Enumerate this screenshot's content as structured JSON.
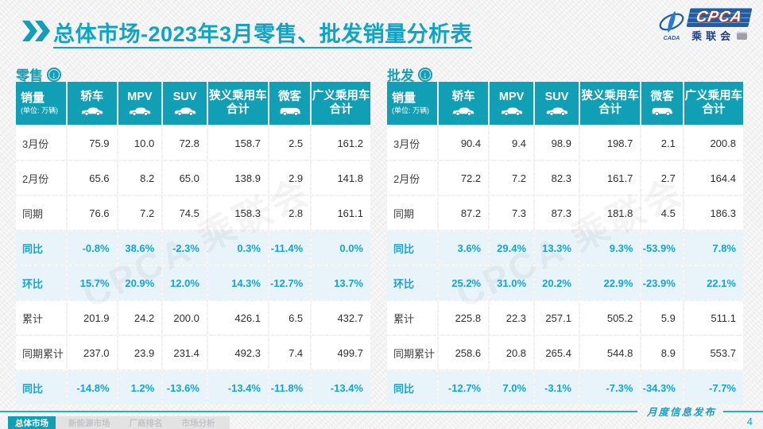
{
  "page": {
    "title": "总体市场-2023年3月零售、批发销量分析表",
    "page_number": "4",
    "footer_note": "月度信息发布",
    "footer_tabs": [
      {
        "label": "总体市场",
        "active": true
      },
      {
        "label": "新能源市场",
        "active": false
      },
      {
        "label": "厂商排名",
        "active": false
      },
      {
        "label": "市场分析",
        "active": false
      }
    ]
  },
  "logo": {
    "acronym": "CPCA",
    "chinese": "乘联会",
    "emblem_text": "CADA"
  },
  "watermark": "CPCA 乘联会",
  "colors": {
    "teal": "#119fb6",
    "title_teal": "#0fa4c4",
    "ratio_text": "#17a3d2",
    "ratio_row_bg": "#e8f4fa",
    "logo_blue": "#1c5fa8"
  },
  "tables": [
    {
      "section_title": "零售",
      "header": {
        "label": "销量",
        "unit": "(单位: 万辆)",
        "columns": [
          {
            "label": "轿车",
            "icon": "car"
          },
          {
            "label": "MPV",
            "icon": "car"
          },
          {
            "label": "SUV",
            "icon": "car"
          },
          {
            "label": "狭义乘用车",
            "label2": "合计",
            "icon": null
          },
          {
            "label": "微客",
            "icon": "van"
          },
          {
            "label": "广义乘用车",
            "label2": "合计",
            "icon": null
          }
        ]
      },
      "rows": [
        {
          "label": "3月份",
          "type": "normal",
          "values": [
            "75.9",
            "10.0",
            "72.8",
            "158.7",
            "2.5",
            "161.2"
          ]
        },
        {
          "label": "2月份",
          "type": "normal",
          "values": [
            "65.6",
            "8.2",
            "65.0",
            "138.9",
            "2.9",
            "141.8"
          ]
        },
        {
          "label": "同期",
          "type": "normal",
          "values": [
            "76.6",
            "7.2",
            "74.5",
            "158.3",
            "2.8",
            "161.1"
          ]
        },
        {
          "label": "同比",
          "type": "ratio",
          "values": [
            "-0.8%",
            "38.6%",
            "-2.3%",
            "0.3%",
            "-11.4%",
            "0.0%"
          ]
        },
        {
          "label": "环比",
          "type": "ratio",
          "values": [
            "15.7%",
            "20.9%",
            "12.0%",
            "14.3%",
            "-12.7%",
            "13.7%"
          ]
        },
        {
          "label": "累计",
          "type": "normal",
          "values": [
            "201.9",
            "24.2",
            "200.0",
            "426.1",
            "6.5",
            "432.7"
          ]
        },
        {
          "label": "同期累计",
          "type": "normal",
          "values": [
            "237.0",
            "23.9",
            "231.4",
            "492.3",
            "7.4",
            "499.7"
          ]
        },
        {
          "label": "同比",
          "type": "ratio",
          "values": [
            "-14.8%",
            "1.2%",
            "-13.6%",
            "-13.4%",
            "-11.8%",
            "-13.4%"
          ]
        }
      ]
    },
    {
      "section_title": "批发",
      "header": {
        "label": "销量",
        "unit": "(单位: 万辆)",
        "columns": [
          {
            "label": "轿车",
            "icon": "car"
          },
          {
            "label": "MPV",
            "icon": "car"
          },
          {
            "label": "SUV",
            "icon": "car"
          },
          {
            "label": "狭义乘用车",
            "label2": "合计",
            "icon": null
          },
          {
            "label": "微客",
            "icon": "van"
          },
          {
            "label": "广义乘用车",
            "label2": "合计",
            "icon": null
          }
        ]
      },
      "rows": [
        {
          "label": "3月份",
          "type": "normal",
          "values": [
            "90.4",
            "9.4",
            "98.9",
            "198.7",
            "2.1",
            "200.8"
          ]
        },
        {
          "label": "2月份",
          "type": "normal",
          "values": [
            "72.2",
            "7.2",
            "82.3",
            "161.7",
            "2.7",
            "164.4"
          ]
        },
        {
          "label": "同期",
          "type": "normal",
          "values": [
            "87.2",
            "7.3",
            "87.3",
            "181.8",
            "4.5",
            "186.3"
          ]
        },
        {
          "label": "同比",
          "type": "ratio",
          "values": [
            "3.6%",
            "29.4%",
            "13.3%",
            "9.3%",
            "-53.9%",
            "7.8%"
          ]
        },
        {
          "label": "环比",
          "type": "ratio",
          "values": [
            "25.2%",
            "31.0%",
            "20.2%",
            "22.9%",
            "-23.9%",
            "22.1%"
          ]
        },
        {
          "label": "累计",
          "type": "normal",
          "values": [
            "225.8",
            "22.3",
            "257.1",
            "505.2",
            "5.9",
            "511.1"
          ]
        },
        {
          "label": "同期累计",
          "type": "normal",
          "values": [
            "258.6",
            "20.8",
            "265.4",
            "544.8",
            "8.9",
            "553.7"
          ]
        },
        {
          "label": "同比",
          "type": "ratio",
          "values": [
            "-12.7%",
            "7.0%",
            "-3.1%",
            "-7.3%",
            "-34.3%",
            "-7.7%"
          ]
        }
      ]
    }
  ]
}
